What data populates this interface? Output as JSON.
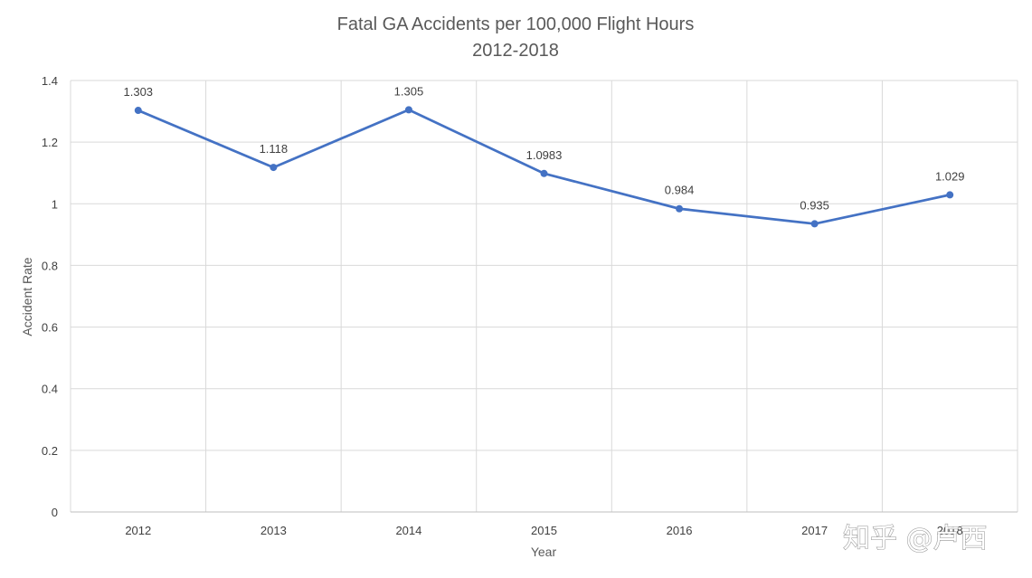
{
  "chart_data": {
    "type": "line",
    "title": "Fatal GA Accidents per 100,000 Flight Hours",
    "subtitle": "2012-2018",
    "xlabel": "Year",
    "ylabel": "Accident Rate",
    "categories": [
      "2012",
      "2013",
      "2014",
      "2015",
      "2016",
      "2017",
      "2018"
    ],
    "series": [
      {
        "values": [
          1.303,
          1.118,
          1.305,
          1.0983,
          0.984,
          0.935,
          1.029
        ],
        "data_labels": [
          "1.303",
          "1.118",
          "1.305",
          "1.0983",
          "0.984",
          "0.935",
          "1.029"
        ],
        "color": "#4472c4"
      }
    ],
    "ylim": [
      0,
      1.4
    ],
    "y_ticks": [
      0,
      0.2,
      0.4,
      0.6,
      0.8,
      1,
      1.2,
      1.4
    ],
    "y_tick_labels": [
      "0",
      "0.2",
      "0.4",
      "0.6",
      "0.8",
      "1",
      "1.2",
      "1.4"
    ],
    "grid": true,
    "legend": "none"
  },
  "colors": {
    "series": "#4472c4",
    "grid": "#d9d9d9",
    "text": "#595959"
  },
  "watermark": {
    "text": "知乎 @卢西"
  }
}
